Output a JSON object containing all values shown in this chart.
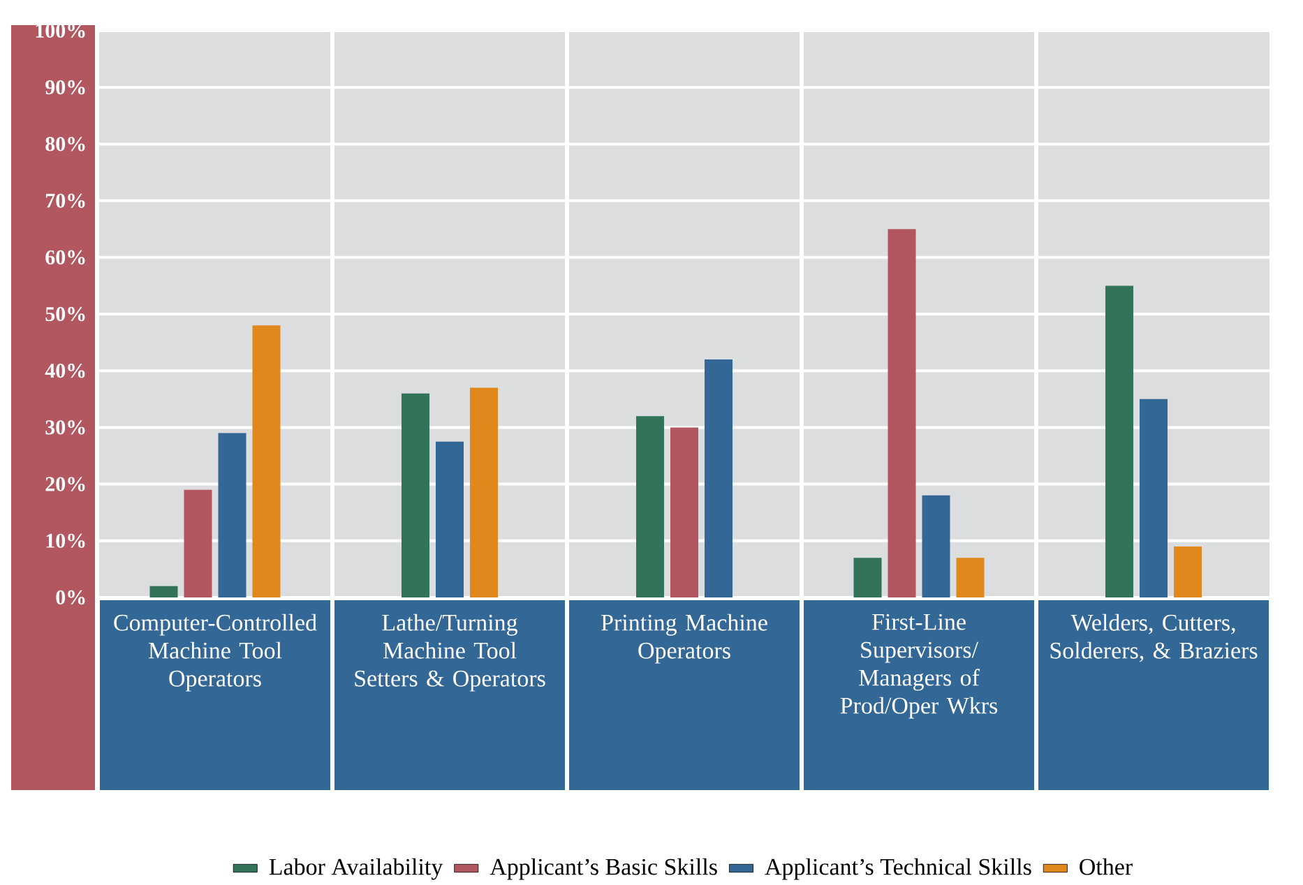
{
  "chart_data": {
    "type": "bar",
    "categories": [
      "Computer-Controlled Machine Tool Operators",
      "Lathe/Turning Machine Tool Setters & Operators",
      "Printing Machine Operators",
      "First-Line Supervisors/ Managers of Prod/Oper Wkrs",
      "Welders, Cutters, Solderers, & Braziers"
    ],
    "series": [
      {
        "name": "Labor Availability",
        "color": "#327359",
        "values": [
          2,
          36,
          32,
          7,
          55
        ]
      },
      {
        "name": "Applicant’s Basic Skills",
        "color": "#b25660",
        "values": [
          19,
          null,
          30,
          65,
          null
        ]
      },
      {
        "name": "Applicant’s Technical Skills",
        "color": "#336796",
        "values": [
          29,
          27.5,
          42,
          18,
          35
        ]
      },
      {
        "name": "Other",
        "color": "#e0881c",
        "values": [
          48,
          37,
          null,
          7,
          9
        ]
      }
    ],
    "ylim": [
      0,
      100
    ],
    "yticks": [
      {
        "value": 0,
        "label": "0%"
      },
      {
        "value": 10,
        "label": "10%"
      },
      {
        "value": 20,
        "label": "20%"
      },
      {
        "value": 30,
        "label": "30%"
      },
      {
        "value": 40,
        "label": "40%"
      },
      {
        "value": 50,
        "label": "50%"
      },
      {
        "value": 60,
        "label": "60%"
      },
      {
        "value": 70,
        "label": "70%"
      },
      {
        "value": 80,
        "label": "80%"
      },
      {
        "value": 90,
        "label": "90%"
      },
      {
        "value": 100,
        "label": "100%"
      }
    ],
    "grid": true,
    "legend": "bottom"
  }
}
